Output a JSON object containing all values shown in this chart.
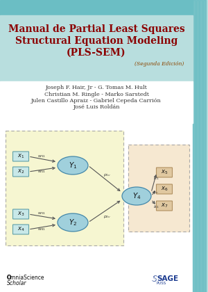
{
  "bg_color": "#b8dede",
  "header_color": "#6bbec4",
  "title_line1": "Manual de Partial Least Squares",
  "title_line2": "Structural Equation Modeling",
  "title_line3": "(PLS-SEM)",
  "subtitle": "(Segunda Edición)",
  "title_color": "#8b0000",
  "subtitle_color": "#8b4500",
  "authors": [
    "Joseph F. Hair, Jr - G. Tomas M. Hult",
    "Christian M. Ringle - Marko Sarstedt",
    "Julen Castillo Apraiz - Gabriel Cepeda Carrión",
    "José Luis Roldán"
  ],
  "author_color": "#333333",
  "diagram_left_bg": "#f5f5cc",
  "diagram_right_bg": "#f5e6cc",
  "ellipse_color": "#a0d0dc",
  "box_fill": "#c8e8e8",
  "box_border": "#60a0a8",
  "right_box_fill": "#e0c8a0",
  "right_box_border": "#b09060",
  "sage_color": "#1a3a8f",
  "side_bar_color": "#6bbec4",
  "white_bg": "#ffffff",
  "footer_omnia": "OmniaScience",
  "footer_scholar": "Scholar"
}
